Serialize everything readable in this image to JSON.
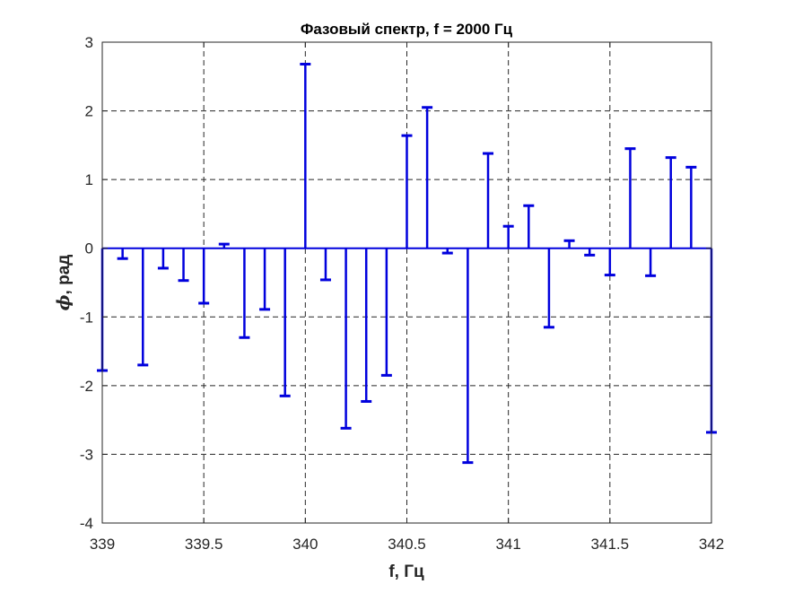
{
  "chart_data": {
    "type": "stem",
    "title": "Фазовый спектр, f = 2000 Гц",
    "xlabel": "f, Гц",
    "ylabel_symbol": "ϕ",
    "ylabel_text": ", рад",
    "xlim": [
      339,
      342
    ],
    "ylim": [
      -4,
      3
    ],
    "xticks": [
      339,
      339.5,
      340,
      340.5,
      341,
      341.5,
      342
    ],
    "xtick_labels": [
      "339",
      "339.5",
      "340",
      "340.5",
      "341",
      "341.5",
      "342"
    ],
    "yticks": [
      -4,
      -3,
      -2,
      -1,
      0,
      1,
      2,
      3
    ],
    "ytick_labels": [
      "-4",
      "-3",
      "-2",
      "-1",
      "0",
      "1",
      "2",
      "3"
    ],
    "grid": true,
    "color": "#0000dd",
    "x": [
      339.0,
      339.1,
      339.2,
      339.3,
      339.4,
      339.5,
      339.6,
      339.7,
      339.8,
      339.9,
      340.0,
      340.1,
      340.2,
      340.3,
      340.4,
      340.5,
      340.6,
      340.7,
      340.8,
      340.9,
      341.0,
      341.1,
      341.2,
      341.3,
      341.4,
      341.5,
      341.6,
      341.7,
      341.8,
      341.9,
      342.0
    ],
    "y": [
      -1.78,
      -0.15,
      -1.7,
      -0.29,
      -0.47,
      -0.8,
      0.06,
      -1.3,
      -0.89,
      -2.15,
      2.68,
      -0.46,
      -2.62,
      -2.23,
      -1.85,
      1.64,
      2.05,
      -0.07,
      -3.12,
      1.38,
      0.32,
      0.62,
      -1.15,
      0.11,
      -0.1,
      -0.39,
      1.45,
      -0.4,
      1.32,
      1.18,
      -2.68
    ]
  }
}
